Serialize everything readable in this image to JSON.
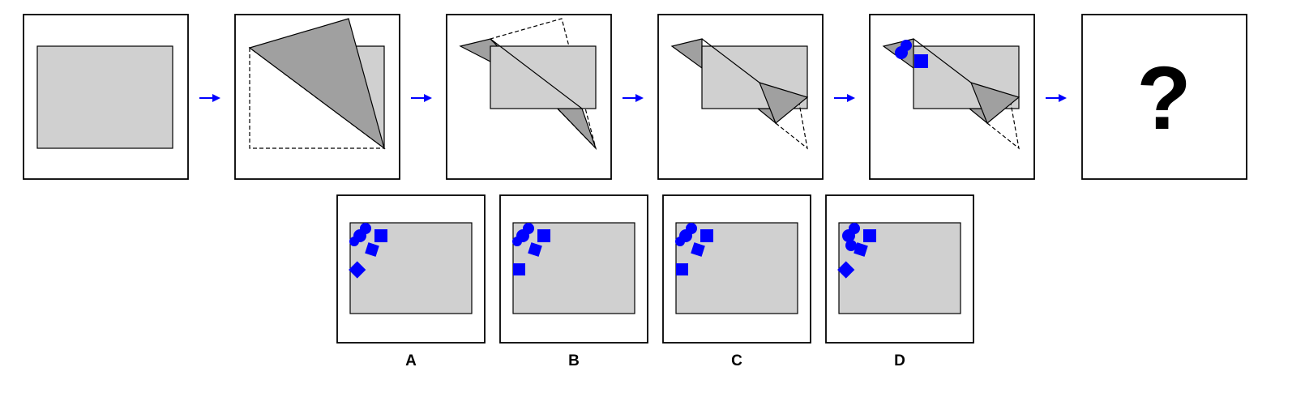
{
  "puzzle": {
    "question_mark": "?",
    "options": [
      {
        "label": "A"
      },
      {
        "label": "B"
      },
      {
        "label": "C"
      },
      {
        "label": "D"
      }
    ],
    "colors": {
      "paper": "#d0d0d0",
      "folded_flap": "#a0a0a0",
      "punch_hole": "#0000ff",
      "arrow": "#0000ff",
      "frame": "#000000"
    },
    "icons": {
      "arrow": "arrow-right-icon",
      "hole_circle": "circle-hole-icon",
      "hole_square": "square-hole-icon",
      "hole_diamond": "diamond-hole-icon"
    }
  }
}
